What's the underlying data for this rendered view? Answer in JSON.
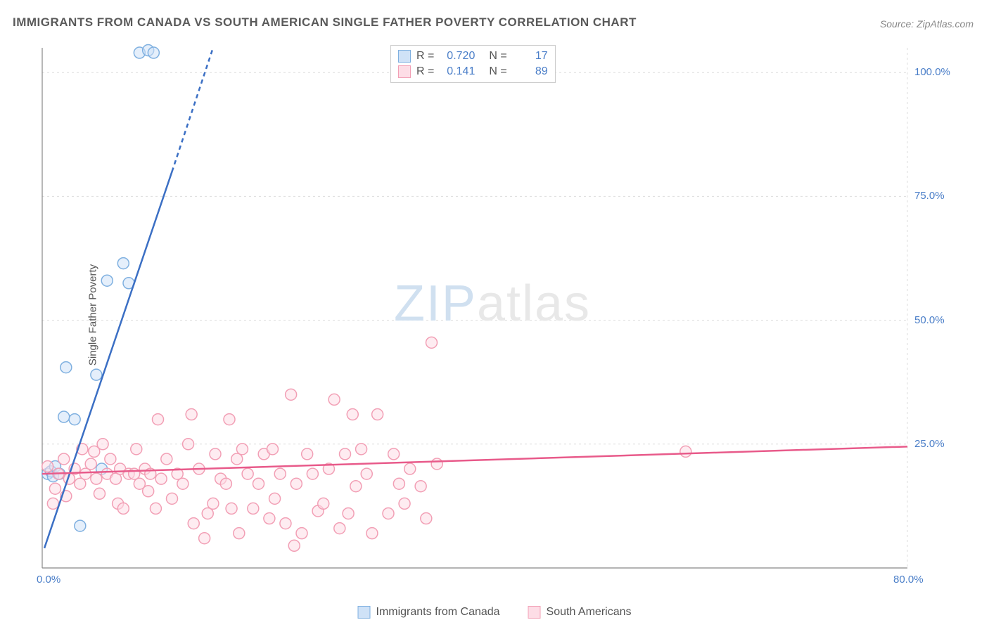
{
  "title": "IMMIGRANTS FROM CANADA VS SOUTH AMERICAN SINGLE FATHER POVERTY CORRELATION CHART",
  "source": "Source: ZipAtlas.com",
  "ylabel": "Single Father Poverty",
  "watermark": {
    "zip": "ZIP",
    "atlas": "atlas"
  },
  "chart": {
    "type": "scatter",
    "xlim": [
      0,
      80
    ],
    "ylim": [
      0,
      105
    ],
    "xtick_labels": [
      "0.0%",
      "80.0%"
    ],
    "xtick_positions": [
      0,
      80
    ],
    "ytick_labels": [
      "25.0%",
      "50.0%",
      "75.0%",
      "100.0%"
    ],
    "ytick_positions": [
      25,
      50,
      75,
      100
    ],
    "grid_color": "#dddddd",
    "axis_color": "#888888",
    "background_color": "#ffffff",
    "marker_radius": 8,
    "marker_stroke_width": 1.5,
    "reg_line_width": 2.5,
    "series": [
      {
        "name": "Immigrants from Canada",
        "fill": "#cfe2f7",
        "stroke": "#7fb0e0",
        "reg_color": "#3b6fc4",
        "r": "0.720",
        "n": "17",
        "reg_solid": {
          "x1": 0.2,
          "y1": 4,
          "x2": 12,
          "y2": 80
        },
        "reg_dashed": {
          "x1": 12,
          "y1": 80,
          "x2": 15.8,
          "y2": 105
        },
        "points": [
          [
            0.5,
            19
          ],
          [
            0.8,
            19.5
          ],
          [
            1.0,
            18.5
          ],
          [
            1.2,
            20.5
          ],
          [
            1.6,
            19
          ],
          [
            2.0,
            30.5
          ],
          [
            2.2,
            40.5
          ],
          [
            3.0,
            30
          ],
          [
            3.5,
            8.5
          ],
          [
            5.0,
            39
          ],
          [
            5.5,
            20
          ],
          [
            6.0,
            58
          ],
          [
            7.5,
            61.5
          ],
          [
            8.0,
            57.5
          ],
          [
            9.0,
            104
          ],
          [
            9.8,
            104.5
          ],
          [
            10.3,
            104
          ]
        ]
      },
      {
        "name": "South Americans",
        "fill": "#fddde6",
        "stroke": "#f29fb5",
        "reg_color": "#e85a8a",
        "r": "0.141",
        "n": "89",
        "reg_solid": {
          "x1": 0,
          "y1": 19,
          "x2": 80,
          "y2": 24.5
        },
        "points": [
          [
            0.5,
            20.5
          ],
          [
            1.0,
            13
          ],
          [
            1.5,
            19
          ],
          [
            2.0,
            22
          ],
          [
            2.5,
            18
          ],
          [
            3.0,
            20
          ],
          [
            3.5,
            17
          ],
          [
            3.7,
            24
          ],
          [
            4.0,
            19
          ],
          [
            4.5,
            21
          ],
          [
            5.0,
            18
          ],
          [
            5.3,
            15
          ],
          [
            5.6,
            25
          ],
          [
            6.0,
            19
          ],
          [
            6.3,
            22
          ],
          [
            6.8,
            18
          ],
          [
            7.0,
            13
          ],
          [
            7.2,
            20
          ],
          [
            7.5,
            12
          ],
          [
            8.0,
            19
          ],
          [
            8.5,
            19
          ],
          [
            8.7,
            24
          ],
          [
            9.0,
            17
          ],
          [
            9.5,
            20
          ],
          [
            10.0,
            19
          ],
          [
            10.5,
            12
          ],
          [
            10.7,
            30
          ],
          [
            11.0,
            18
          ],
          [
            11.5,
            22
          ],
          [
            12.0,
            14
          ],
          [
            12.5,
            19
          ],
          [
            13.0,
            17
          ],
          [
            13.5,
            25
          ],
          [
            13.8,
            31
          ],
          [
            14.0,
            9
          ],
          [
            14.5,
            20
          ],
          [
            15.0,
            6
          ],
          [
            15.3,
            11
          ],
          [
            15.8,
            13
          ],
          [
            16.0,
            23
          ],
          [
            16.5,
            18
          ],
          [
            17.0,
            17
          ],
          [
            17.3,
            30
          ],
          [
            17.5,
            12
          ],
          [
            18.0,
            22
          ],
          [
            18.2,
            7
          ],
          [
            18.5,
            24
          ],
          [
            19.0,
            19
          ],
          [
            19.5,
            12
          ],
          [
            20.0,
            17
          ],
          [
            20.5,
            23
          ],
          [
            21.0,
            10
          ],
          [
            21.3,
            24
          ],
          [
            21.5,
            14
          ],
          [
            22.0,
            19
          ],
          [
            22.5,
            9
          ],
          [
            23.0,
            35
          ],
          [
            23.3,
            4.5
          ],
          [
            23.5,
            17
          ],
          [
            24.0,
            7
          ],
          [
            24.5,
            23
          ],
          [
            25.0,
            19
          ],
          [
            25.5,
            11.5
          ],
          [
            26.0,
            13
          ],
          [
            26.5,
            20
          ],
          [
            27.0,
            34
          ],
          [
            27.5,
            8
          ],
          [
            28.0,
            23
          ],
          [
            28.3,
            11
          ],
          [
            28.7,
            31
          ],
          [
            29.0,
            16.5
          ],
          [
            29.5,
            24
          ],
          [
            30.0,
            19
          ],
          [
            30.5,
            7
          ],
          [
            31.0,
            31
          ],
          [
            32.0,
            11
          ],
          [
            32.5,
            23
          ],
          [
            33.0,
            17
          ],
          [
            33.5,
            13
          ],
          [
            34.0,
            20
          ],
          [
            35.0,
            16.5
          ],
          [
            35.5,
            10
          ],
          [
            36.0,
            45.5
          ],
          [
            36.5,
            21
          ],
          [
            59.5,
            23.5
          ],
          [
            1.2,
            16
          ],
          [
            2.2,
            14.5
          ],
          [
            4.8,
            23.5
          ],
          [
            9.8,
            15.5
          ]
        ]
      }
    ]
  },
  "legend_bottom": [
    {
      "label": "Immigrants from Canada",
      "fill": "#cfe2f7",
      "stroke": "#7fb0e0"
    },
    {
      "label": "South Americans",
      "fill": "#fddde6",
      "stroke": "#f29fb5"
    }
  ]
}
